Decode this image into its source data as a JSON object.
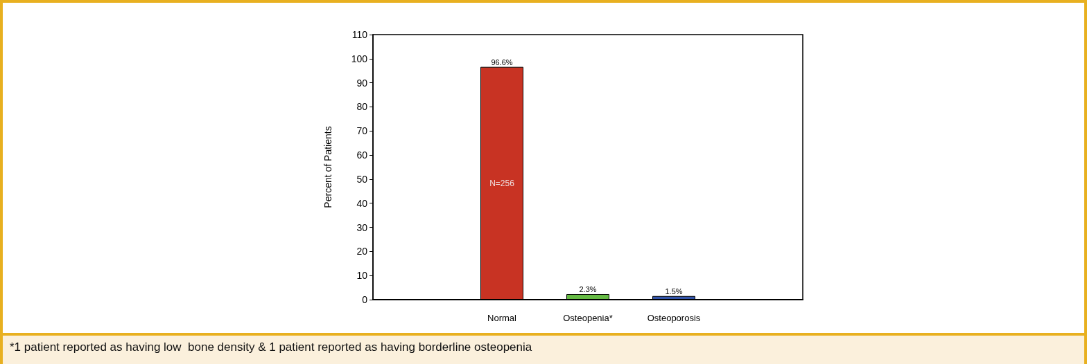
{
  "chart_data": {
    "type": "bar",
    "ylabel": "Percent of Patients",
    "categories": [
      null,
      "Normal",
      "Osteopenia*",
      "Osteoporosis",
      null
    ],
    "values": [
      null,
      96.6,
      2.3,
      1.5,
      null
    ],
    "colors": [
      "#c83323",
      "#c83323",
      "#66bb44",
      "#3355aa",
      "#3355aa"
    ],
    "value_labels": [
      null,
      "96.6%",
      "2.3%",
      "1.5%",
      null
    ],
    "ylim": [
      0,
      110
    ],
    "yticks": [
      0,
      10,
      20,
      30,
      40,
      50,
      60,
      70,
      80,
      90,
      100,
      110
    ],
    "annotations": [
      "N=256",
      "*1 patient reported as having low  bone density & 1 patient reported as having borderline osteopenia"
    ]
  }
}
